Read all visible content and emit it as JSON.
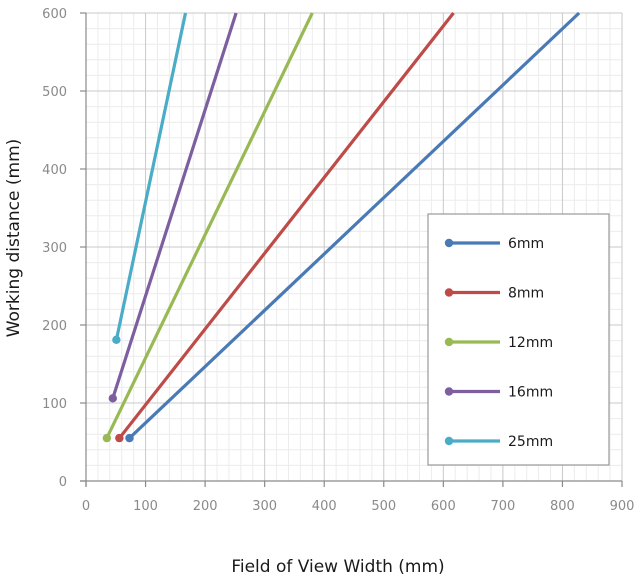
{
  "chart_data": {
    "type": "line",
    "title": "",
    "xlabel": "Field of View Width (mm)",
    "ylabel": "Working distance (mm)",
    "xlim": [
      0,
      900
    ],
    "ylim": [
      0,
      600
    ],
    "x_ticks": [
      0,
      100,
      200,
      300,
      400,
      500,
      600,
      700,
      800,
      900
    ],
    "y_ticks": [
      0,
      100,
      200,
      300,
      400,
      500,
      600
    ],
    "x_minor_step": 20,
    "y_minor_step": 20,
    "grid": true,
    "legend_position": "right-middle",
    "series": [
      {
        "name": "6mm",
        "color": "#4a7ab5",
        "x": [
          73,
          828
        ],
        "y": [
          55,
          600
        ]
      },
      {
        "name": "8mm",
        "color": "#be4b48",
        "x": [
          56,
          617
        ],
        "y": [
          55,
          600
        ]
      },
      {
        "name": "12mm",
        "color": "#98b954",
        "x": [
          35,
          380
        ],
        "y": [
          55,
          600
        ]
      },
      {
        "name": "16mm",
        "color": "#7d5fa0",
        "x": [
          45,
          252
        ],
        "y": [
          106,
          600
        ]
      },
      {
        "name": "25mm",
        "color": "#4aacc6",
        "x": [
          51,
          167
        ],
        "y": [
          181,
          600
        ]
      }
    ]
  }
}
